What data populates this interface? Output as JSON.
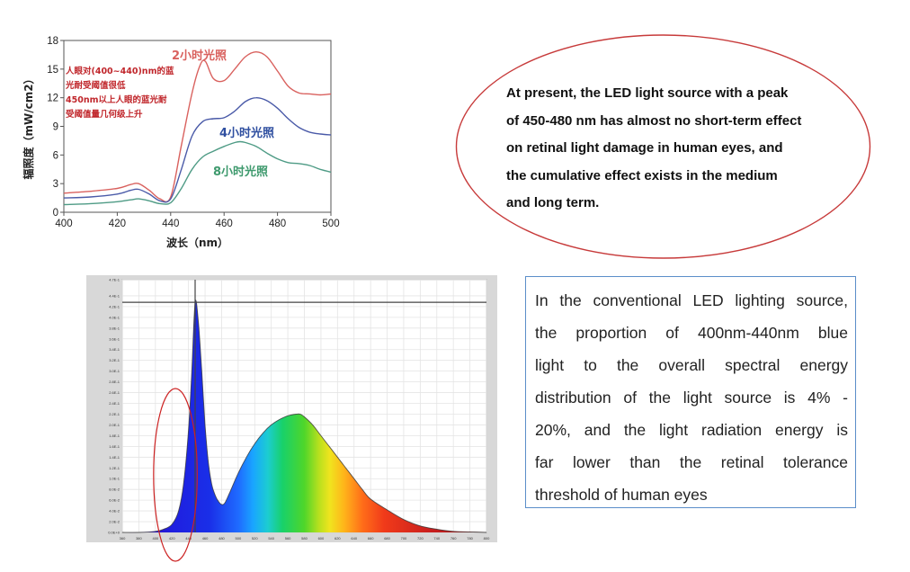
{
  "chart_data": [
    {
      "type": "line",
      "title": "",
      "xlabel": "波长（nm）",
      "ylabel": "辐照度（mW/cm2）",
      "xlim": [
        400,
        500
      ],
      "ylim": [
        0,
        18
      ],
      "x_ticks": [
        "400",
        "420",
        "440",
        "460",
        "480",
        "500"
      ],
      "y_ticks": [
        "0",
        "3",
        "6",
        "9",
        "12",
        "15",
        "18"
      ],
      "grid": false,
      "series": [
        {
          "name": "2小时光照",
          "color": "#d9615e",
          "x": [
            400,
            410,
            420,
            425,
            428,
            432,
            436,
            440,
            444,
            448,
            451,
            453,
            456,
            460,
            464,
            468,
            472,
            476,
            480,
            484,
            488,
            492,
            496,
            500
          ],
          "y": [
            2.0,
            2.2,
            2.5,
            2.9,
            3.0,
            2.3,
            1.4,
            1.6,
            7.0,
            12.5,
            15.4,
            15.8,
            14.0,
            13.8,
            15.0,
            16.3,
            16.8,
            16.3,
            14.8,
            13.2,
            12.5,
            12.4,
            12.3,
            12.4
          ]
        },
        {
          "name": "4小时光照",
          "color": "#4a5aa8",
          "x": [
            400,
            410,
            420,
            425,
            428,
            432,
            436,
            440,
            444,
            448,
            452,
            456,
            460,
            464,
            468,
            472,
            476,
            480,
            484,
            488,
            492,
            496,
            500
          ],
          "y": [
            1.5,
            1.6,
            1.9,
            2.3,
            2.4,
            1.9,
            1.2,
            1.4,
            4.5,
            8.0,
            9.5,
            9.8,
            9.9,
            10.6,
            11.6,
            12.0,
            11.7,
            10.9,
            9.8,
            8.9,
            8.4,
            8.2,
            8.1
          ]
        },
        {
          "name": "8小时光照",
          "color": "#4e9b85",
          "x": [
            400,
            410,
            420,
            425,
            428,
            432,
            436,
            440,
            444,
            448,
            452,
            456,
            460,
            464,
            466,
            468,
            472,
            476,
            480,
            484,
            488,
            492,
            496,
            500
          ],
          "y": [
            0.8,
            0.9,
            1.1,
            1.3,
            1.4,
            1.2,
            0.9,
            1.0,
            2.5,
            4.5,
            5.8,
            6.4,
            6.9,
            7.3,
            7.4,
            7.3,
            6.9,
            6.2,
            5.6,
            5.2,
            5.1,
            4.9,
            4.5,
            4.2
          ]
        }
      ],
      "series_labels": [
        {
          "text": "2小时光照",
          "color": "#d9615e"
        },
        {
          "text": "4小时光照",
          "color": "#2f4fa0"
        },
        {
          "text": "8小时光照",
          "color": "#3f9a6e"
        }
      ],
      "annotation_lines": [
        "人眼对(400~440)nm的蓝",
        "光耐受阈值很低",
        "450nm以上人眼的蓝光耐",
        "受阈值量几何级上升"
      ],
      "annotation_color": "#c0262b"
    },
    {
      "type": "area",
      "title": "",
      "xlabel": "",
      "ylabel": "",
      "xlim": [
        360,
        800
      ],
      "ylim": [
        0,
        4.7
      ],
      "x_ticks": [
        "360",
        "380",
        "400",
        "420",
        "440",
        "460",
        "480",
        "500",
        "520",
        "540",
        "560",
        "580",
        "600",
        "620",
        "640",
        "660",
        "680",
        "700",
        "720",
        "740",
        "760",
        "780",
        "800"
      ],
      "y_ticks": [
        "0.0E+0",
        "2.0E-2",
        "4.0E-2",
        "6.0E-2",
        "8.0E-2",
        "1.0E-1",
        "1.2E-1",
        "1.4E-1",
        "1.6E-1",
        "1.8E-1",
        "2.0E-1",
        "2.2E-1",
        "2.4E-1",
        "2.6E-1",
        "2.8E-1",
        "3.0E-1",
        "3.2E-1",
        "3.4E-1",
        "3.6E-1",
        "3.8E-1",
        "4.0E-1",
        "4.2E-1",
        "4.4E-1",
        "4.7E-1"
      ],
      "grid": true,
      "fill": "visible-spectrum-gradient",
      "cursor": {
        "x": 448,
        "y": 4.28
      },
      "highlight": {
        "shape": "ellipse",
        "color": "#cc2222",
        "x_range": [
          400,
          444
        ]
      },
      "x": [
        360,
        380,
        400,
        410,
        420,
        428,
        434,
        440,
        444,
        448,
        452,
        456,
        460,
        464,
        468,
        472,
        476,
        480,
        484,
        490,
        500,
        510,
        520,
        530,
        540,
        550,
        560,
        570,
        575,
        580,
        590,
        600,
        610,
        620,
        630,
        640,
        650,
        660,
        680,
        700,
        720,
        740,
        760,
        780,
        800
      ],
      "y": [
        0.0,
        0.0,
        0.02,
        0.06,
        0.15,
        0.4,
        0.9,
        1.9,
        3.0,
        4.28,
        3.9,
        3.0,
        2.0,
        1.3,
        0.9,
        0.7,
        0.58,
        0.52,
        0.55,
        0.75,
        1.1,
        1.4,
        1.65,
        1.85,
        2.0,
        2.1,
        2.17,
        2.2,
        2.2,
        2.15,
        2.0,
        1.8,
        1.6,
        1.4,
        1.2,
        1.0,
        0.8,
        0.62,
        0.42,
        0.24,
        0.12,
        0.06,
        0.02,
        0.01,
        0.0
      ]
    }
  ],
  "ellipse_box": {
    "border_color": "#c73a3a",
    "lines": [
      "At present, the LED light source with a peak",
      "of 450-480 nm has almost no short-term effect",
      "on retinal light damage in human eyes, and",
      "the cumulative effect exists in the medium",
      "and long term."
    ]
  },
  "info_box": {
    "border_color": "#5b8ec9",
    "lines": [
      "In the conventional LED lighting source,",
      "the proportion of 400nm-440nm blue",
      "light to the overall spectral energy",
      "distribution of the light source is 4% -",
      "20%, and the light radiation energy is",
      "far lower than the retinal tolerance",
      "threshold of human eyes"
    ]
  }
}
